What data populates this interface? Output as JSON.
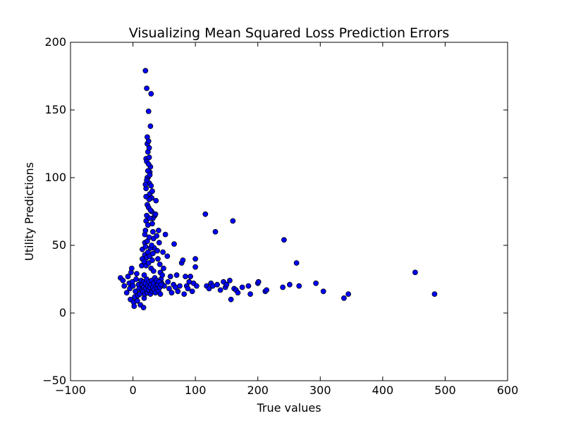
{
  "chart_data": {
    "type": "scatter",
    "title": "Visualizing Mean Squared Loss Prediction Errors",
    "xlabel": "True values",
    "ylabel": "Utility Predictions",
    "xlim": [
      -100,
      600
    ],
    "ylim": [
      -50,
      200
    ],
    "xticks": [
      -100,
      0,
      100,
      200,
      300,
      400,
      500,
      600
    ],
    "yticks": [
      -50,
      0,
      50,
      100,
      150,
      200
    ],
    "xtick_labels": [
      "−100",
      "0",
      "100",
      "200",
      "300",
      "400",
      "500",
      "600"
    ],
    "ytick_labels": [
      "−50",
      "0",
      "50",
      "100",
      "150",
      "200"
    ],
    "grid": false,
    "legend": "none",
    "marker_color": "#0000ff",
    "marker_edge_color": "#000000",
    "series": [
      {
        "points": [
          [
            -20,
            26
          ],
          [
            -16,
            24
          ],
          [
            -14,
            20
          ],
          [
            -10,
            15
          ],
          [
            -8,
            27
          ],
          [
            -6,
            22
          ],
          [
            -5,
            18
          ],
          [
            -4,
            10
          ],
          [
            -3,
            30
          ],
          [
            -2,
            33
          ],
          [
            -1,
            23
          ],
          [
            0,
            20
          ],
          [
            1,
            8
          ],
          [
            2,
            5
          ],
          [
            3,
            12
          ],
          [
            4,
            16
          ],
          [
            5,
            25
          ],
          [
            6,
            29
          ],
          [
            7,
            9
          ],
          [
            8,
            13
          ],
          [
            9,
            21
          ],
          [
            10,
            18
          ],
          [
            11,
            14
          ],
          [
            12,
            6
          ],
          [
            13,
            24
          ],
          [
            14,
            35
          ],
          [
            15,
            40
          ],
          [
            15,
            47
          ],
          [
            16,
            19
          ],
          [
            17,
            4
          ],
          [
            18,
            11
          ],
          [
            18,
            28
          ],
          [
            19,
            58
          ],
          [
            19,
            52
          ],
          [
            20,
            61
          ],
          [
            20,
            179
          ],
          [
            21,
            92
          ],
          [
            21,
            114
          ],
          [
            22,
            166
          ],
          [
            22,
            112
          ],
          [
            23,
            130
          ],
          [
            23,
            125
          ],
          [
            24,
            119
          ],
          [
            24,
            100
          ],
          [
            25,
            127
          ],
          [
            25,
            149
          ],
          [
            26,
            122
          ],
          [
            26,
            96
          ],
          [
            27,
            104
          ],
          [
            27,
            88
          ],
          [
            28,
            138
          ],
          [
            28,
            108
          ],
          [
            29,
            162
          ],
          [
            29,
            94
          ],
          [
            30,
            85
          ],
          [
            30,
            75
          ],
          [
            31,
            66
          ],
          [
            31,
            90
          ],
          [
            32,
            70
          ],
          [
            32,
            60
          ],
          [
            33,
            55
          ],
          [
            34,
            48
          ],
          [
            35,
            72
          ],
          [
            36,
            73
          ],
          [
            37,
            83
          ],
          [
            38,
            57
          ],
          [
            39,
            46
          ],
          [
            40,
            40
          ],
          [
            41,
            61
          ],
          [
            42,
            52
          ],
          [
            43,
            36
          ],
          [
            44,
            30
          ],
          [
            45,
            25
          ],
          [
            46,
            22
          ],
          [
            47,
            28
          ],
          [
            48,
            45
          ],
          [
            49,
            33
          ],
          [
            50,
            20
          ],
          [
            52,
            58
          ],
          [
            55,
            42
          ],
          [
            56,
            23
          ],
          [
            58,
            18
          ],
          [
            60,
            27
          ],
          [
            62,
            15
          ],
          [
            65,
            21
          ],
          [
            66,
            51
          ],
          [
            68,
            19
          ],
          [
            70,
            28
          ],
          [
            72,
            16
          ],
          [
            75,
            20
          ],
          [
            78,
            37
          ],
          [
            80,
            39
          ],
          [
            82,
            14
          ],
          [
            84,
            27
          ],
          [
            86,
            20
          ],
          [
            88,
            18
          ],
          [
            90,
            23
          ],
          [
            92,
            27
          ],
          [
            95,
            16
          ],
          [
            97,
            22
          ],
          [
            100,
            40
          ],
          [
            100,
            34
          ],
          [
            102,
            20
          ],
          [
            116,
            73
          ],
          [
            118,
            20
          ],
          [
            122,
            18
          ],
          [
            125,
            22
          ],
          [
            128,
            20
          ],
          [
            132,
            60
          ],
          [
            135,
            21
          ],
          [
            140,
            17
          ],
          [
            145,
            23
          ],
          [
            148,
            19
          ],
          [
            150,
            21
          ],
          [
            155,
            24
          ],
          [
            157,
            10
          ],
          [
            160,
            68
          ],
          [
            162,
            18
          ],
          [
            165,
            17
          ],
          [
            168,
            15
          ],
          [
            175,
            19
          ],
          [
            185,
            20
          ],
          [
            188,
            14
          ],
          [
            200,
            22
          ],
          [
            201,
            23
          ],
          [
            212,
            16
          ],
          [
            214,
            17
          ],
          [
            240,
            19
          ],
          [
            242,
            54
          ],
          [
            251,
            21
          ],
          [
            262,
            37
          ],
          [
            266,
            20
          ],
          [
            293,
            22
          ],
          [
            305,
            16
          ],
          [
            338,
            11
          ],
          [
            345,
            14
          ],
          [
            452,
            30
          ],
          [
            483,
            14
          ],
          [
            14,
            17
          ],
          [
            15,
            21
          ],
          [
            16,
            16
          ],
          [
            17,
            23
          ],
          [
            18,
            19
          ],
          [
            19,
            14
          ],
          [
            20,
            22
          ],
          [
            21,
            18
          ],
          [
            22,
            25
          ],
          [
            23,
            15
          ],
          [
            24,
            20
          ],
          [
            25,
            17
          ],
          [
            26,
            23
          ],
          [
            27,
            19
          ],
          [
            28,
            14
          ],
          [
            29,
            21
          ],
          [
            30,
            24
          ],
          [
            31,
            16
          ],
          [
            32,
            19
          ],
          [
            33,
            22
          ],
          [
            34,
            17
          ],
          [
            35,
            26
          ],
          [
            36,
            15
          ],
          [
            37,
            20
          ],
          [
            38,
            24
          ],
          [
            39,
            18
          ],
          [
            40,
            21
          ],
          [
            41,
            16
          ],
          [
            42,
            23
          ],
          [
            43,
            19
          ],
          [
            44,
            14
          ],
          [
            45,
            21
          ],
          [
            18,
            38
          ],
          [
            19,
            43
          ],
          [
            20,
            49
          ],
          [
            21,
            35
          ],
          [
            22,
            41
          ],
          [
            23,
            53
          ],
          [
            24,
            45
          ],
          [
            25,
            37
          ],
          [
            26,
            56
          ],
          [
            27,
            42
          ],
          [
            28,
            48
          ],
          [
            29,
            33
          ],
          [
            30,
            50
          ],
          [
            31,
            39
          ],
          [
            32,
            44
          ],
          [
            33,
            31
          ],
          [
            21,
            68
          ],
          [
            22,
            72
          ],
          [
            23,
            80
          ],
          [
            24,
            65
          ],
          [
            25,
            78
          ],
          [
            26,
            84
          ],
          [
            27,
            70
          ],
          [
            28,
            76
          ],
          [
            23,
            100
          ],
          [
            24,
            105
          ],
          [
            25,
            110
          ],
          [
            26,
            115
          ],
          [
            27,
            102
          ],
          [
            22,
            98
          ],
          [
            21,
            86
          ],
          [
            20,
            95
          ]
        ]
      }
    ]
  }
}
